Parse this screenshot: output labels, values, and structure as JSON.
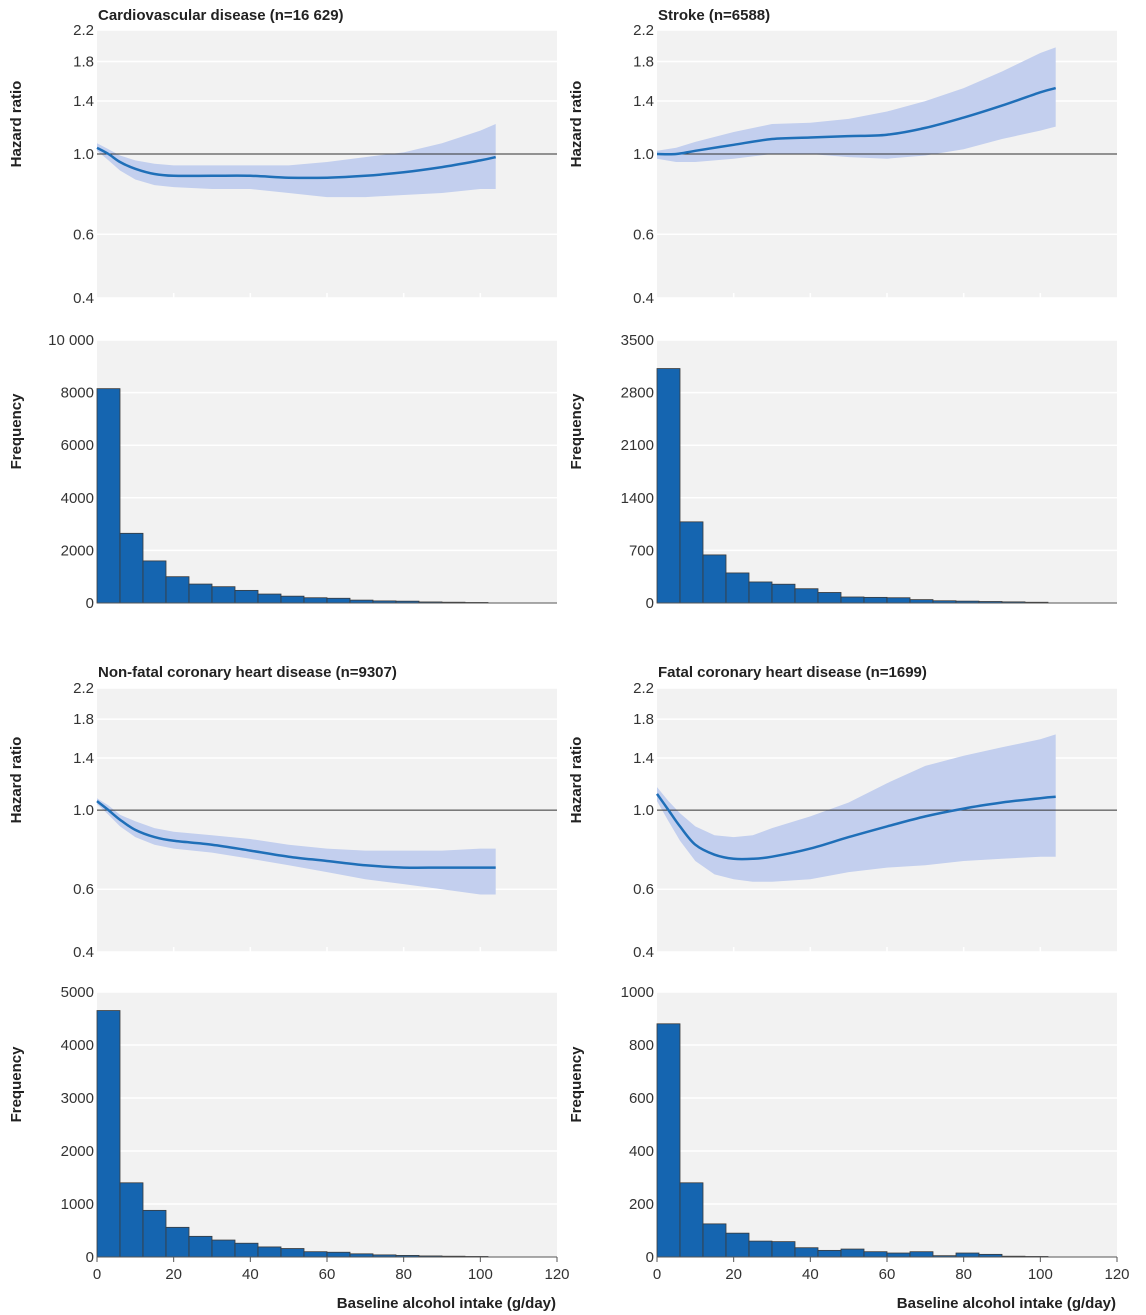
{
  "chart_data": [
    {
      "type": "line",
      "title": "Cardiovascular disease (n=16 629)",
      "hazard": {
        "ylabel": "Hazard ratio",
        "ylim": [
          0.4,
          2.2
        ],
        "yticks": [
          "0.4",
          "0.6",
          "1.0",
          "1.4",
          "1.8",
          "2.2"
        ],
        "reference": 1.0,
        "x": [
          0,
          3,
          6,
          10,
          15,
          20,
          30,
          40,
          50,
          60,
          70,
          80,
          90,
          100,
          104
        ],
        "y": [
          1.04,
          1.0,
          0.95,
          0.91,
          0.88,
          0.87,
          0.87,
          0.87,
          0.86,
          0.86,
          0.87,
          0.89,
          0.92,
          0.96,
          0.98
        ],
        "lower": [
          1.02,
          0.96,
          0.9,
          0.85,
          0.82,
          0.81,
          0.8,
          0.8,
          0.78,
          0.76,
          0.76,
          0.77,
          0.78,
          0.8,
          0.8
        ],
        "upper": [
          1.07,
          1.03,
          0.99,
          0.96,
          0.94,
          0.93,
          0.93,
          0.93,
          0.93,
          0.95,
          0.98,
          1.01,
          1.07,
          1.16,
          1.21
        ]
      },
      "histogram": {
        "ylabel": "Frequency",
        "ylim": [
          0,
          10000
        ],
        "yticks": [
          "0",
          "2000",
          "4000",
          "6000",
          "8000",
          "10 000"
        ],
        "bin_width": 6,
        "bin_starts": [
          0,
          6,
          12,
          18,
          24,
          30,
          36,
          42,
          48,
          54,
          60,
          66,
          72,
          78,
          84,
          90,
          96
        ],
        "values": [
          8150,
          2650,
          1600,
          1000,
          720,
          620,
          480,
          340,
          260,
          200,
          180,
          110,
          80,
          70,
          40,
          30,
          20
        ]
      }
    },
    {
      "type": "line",
      "title": "Stroke (n=6588)",
      "hazard": {
        "ylabel": "Hazard ratio",
        "ylim": [
          0.4,
          2.2
        ],
        "yticks": [
          "0.4",
          "0.6",
          "1.0",
          "1.4",
          "1.8",
          "2.2"
        ],
        "reference": 1.0,
        "x": [
          0,
          5,
          10,
          20,
          30,
          40,
          50,
          60,
          70,
          80,
          90,
          100,
          104
        ],
        "y": [
          1.0,
          1.0,
          1.02,
          1.06,
          1.1,
          1.11,
          1.12,
          1.13,
          1.18,
          1.26,
          1.36,
          1.48,
          1.52
        ],
        "lower": [
          0.97,
          0.95,
          0.95,
          0.97,
          1.0,
          1.0,
          0.98,
          0.97,
          0.99,
          1.03,
          1.1,
          1.16,
          1.19
        ],
        "upper": [
          1.02,
          1.04,
          1.08,
          1.15,
          1.21,
          1.22,
          1.25,
          1.31,
          1.4,
          1.52,
          1.69,
          1.9,
          1.97
        ]
      },
      "histogram": {
        "ylabel": "Frequency",
        "ylim": [
          0,
          3500
        ],
        "yticks": [
          "0",
          "700",
          "1400",
          "2100",
          "2800",
          "3500"
        ],
        "bin_width": 6,
        "bin_starts": [
          0,
          6,
          12,
          18,
          24,
          30,
          36,
          42,
          48,
          54,
          60,
          66,
          72,
          78,
          84,
          90,
          96
        ],
        "values": [
          3120,
          1080,
          640,
          400,
          280,
          250,
          190,
          140,
          80,
          75,
          70,
          45,
          30,
          25,
          20,
          15,
          10
        ]
      }
    },
    {
      "type": "line",
      "title": "Non-fatal coronary heart disease (n=9307)",
      "hazard": {
        "ylabel": "Hazard ratio",
        "ylim": [
          0.4,
          2.2
        ],
        "yticks": [
          "0.4",
          "0.6",
          "1.0",
          "1.4",
          "1.8",
          "2.2"
        ],
        "reference": 1.0,
        "x": [
          0,
          3,
          6,
          10,
          15,
          20,
          30,
          40,
          50,
          60,
          70,
          80,
          90,
          100,
          104
        ],
        "y": [
          1.06,
          1.0,
          0.94,
          0.88,
          0.84,
          0.82,
          0.8,
          0.77,
          0.74,
          0.72,
          0.7,
          0.69,
          0.69,
          0.69,
          0.69
        ],
        "lower": [
          1.04,
          0.97,
          0.9,
          0.84,
          0.8,
          0.78,
          0.76,
          0.73,
          0.7,
          0.67,
          0.64,
          0.62,
          0.6,
          0.58,
          0.58
        ],
        "upper": [
          1.08,
          1.03,
          0.97,
          0.93,
          0.89,
          0.87,
          0.85,
          0.83,
          0.8,
          0.78,
          0.77,
          0.77,
          0.77,
          0.78,
          0.78
        ]
      },
      "histogram": {
        "ylabel": "Frequency",
        "ylim": [
          0,
          5000
        ],
        "yticks": [
          "0",
          "1000",
          "2000",
          "3000",
          "4000",
          "5000"
        ],
        "bin_width": 6,
        "bin_starts": [
          0,
          6,
          12,
          18,
          24,
          30,
          36,
          42,
          48,
          54,
          60,
          66,
          72,
          78,
          84,
          90,
          96
        ],
        "values": [
          4650,
          1400,
          880,
          560,
          390,
          320,
          260,
          190,
          160,
          100,
          90,
          60,
          40,
          30,
          20,
          15,
          10
        ]
      }
    },
    {
      "type": "line",
      "title": "Fatal coronary heart disease (n=1699)",
      "hazard": {
        "ylabel": "Hazard ratio",
        "ylim": [
          0.4,
          2.2
        ],
        "yticks": [
          "0.4",
          "0.6",
          "1.0",
          "1.4",
          "1.8",
          "2.2"
        ],
        "reference": 1.0,
        "x": [
          0,
          3,
          6,
          10,
          15,
          20,
          25,
          30,
          40,
          50,
          60,
          70,
          80,
          90,
          100,
          104
        ],
        "y": [
          1.11,
          1.0,
          0.9,
          0.8,
          0.75,
          0.73,
          0.73,
          0.74,
          0.78,
          0.84,
          0.9,
          0.96,
          1.01,
          1.05,
          1.08,
          1.09
        ],
        "lower": [
          1.06,
          0.93,
          0.82,
          0.72,
          0.66,
          0.64,
          0.63,
          0.63,
          0.64,
          0.67,
          0.69,
          0.7,
          0.72,
          0.73,
          0.74,
          0.74
        ],
        "upper": [
          1.16,
          1.06,
          0.98,
          0.9,
          0.85,
          0.84,
          0.85,
          0.89,
          0.96,
          1.05,
          1.19,
          1.33,
          1.42,
          1.5,
          1.58,
          1.63
        ]
      },
      "histogram": {
        "ylabel": "Frequency",
        "ylim": [
          0,
          1000
        ],
        "yticks": [
          "0",
          "200",
          "400",
          "600",
          "800",
          "1000"
        ],
        "bin_width": 6,
        "bin_starts": [
          0,
          6,
          12,
          18,
          24,
          30,
          36,
          42,
          48,
          54,
          60,
          66,
          72,
          78,
          84,
          90,
          96
        ],
        "values": [
          880,
          280,
          125,
          90,
          60,
          58,
          35,
          25,
          30,
          20,
          15,
          20,
          5,
          15,
          10,
          3,
          2
        ]
      }
    }
  ],
  "x_axis": {
    "label": "Baseline alcohol intake (g/day)",
    "xlim": [
      0,
      120
    ],
    "ticks": [
      "0",
      "20",
      "40",
      "60",
      "80",
      "100",
      "120"
    ]
  },
  "colors": {
    "panel_background": "#f2f2f2",
    "ci_band": "#c3cfee",
    "hazard_line": "#1f6fb8",
    "bars": "#1565b0"
  }
}
